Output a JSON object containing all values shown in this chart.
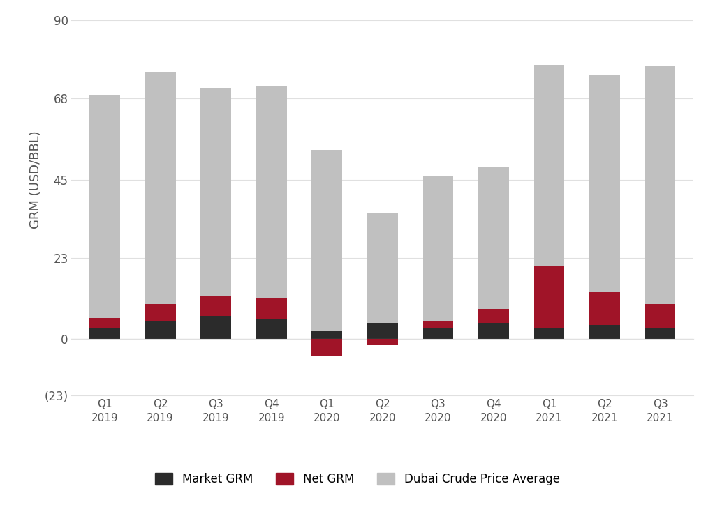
{
  "categories": [
    "Q1\n2019",
    "Q2\n2019",
    "Q3\n2019",
    "Q4\n2019",
    "Q1\n2020",
    "Q2\n2020",
    "Q3\n2020",
    "Q4\n2020",
    "Q1\n2021",
    "Q2\n2021",
    "Q3\n2021"
  ],
  "market_grm": [
    3.0,
    5.0,
    6.5,
    5.5,
    2.5,
    4.5,
    3.0,
    4.5,
    3.0,
    4.0,
    3.0
  ],
  "net_grm": [
    3.0,
    5.0,
    5.5,
    6.0,
    -7.0,
    -2.5,
    2.0,
    4.0,
    17.5,
    9.5,
    7.0
  ],
  "dubai_crude": [
    63.0,
    65.5,
    59.0,
    60.0,
    51.0,
    31.0,
    41.0,
    40.0,
    57.0,
    61.0,
    67.0
  ],
  "market_grm_color": "#2b2b2b",
  "net_grm_color": "#a01428",
  "dubai_crude_color": "#c0c0c0",
  "ylabel": "GRM (USD/BBL)",
  "ylim_main": [
    0,
    90
  ],
  "ylim_neg": [
    -23,
    0
  ],
  "yticks": [
    0,
    23,
    45,
    68,
    90
  ],
  "ytick_labels": [
    "0",
    "23",
    "45",
    "68",
    "90"
  ],
  "neg_tick": -23,
  "neg_tick_label": "(23)",
  "background_color": "#ffffff",
  "grid_color": "#e0e0e0",
  "legend_labels": [
    "Market GRM",
    "Net GRM",
    "Dubai Crude Price Average"
  ],
  "bar_width": 0.55
}
